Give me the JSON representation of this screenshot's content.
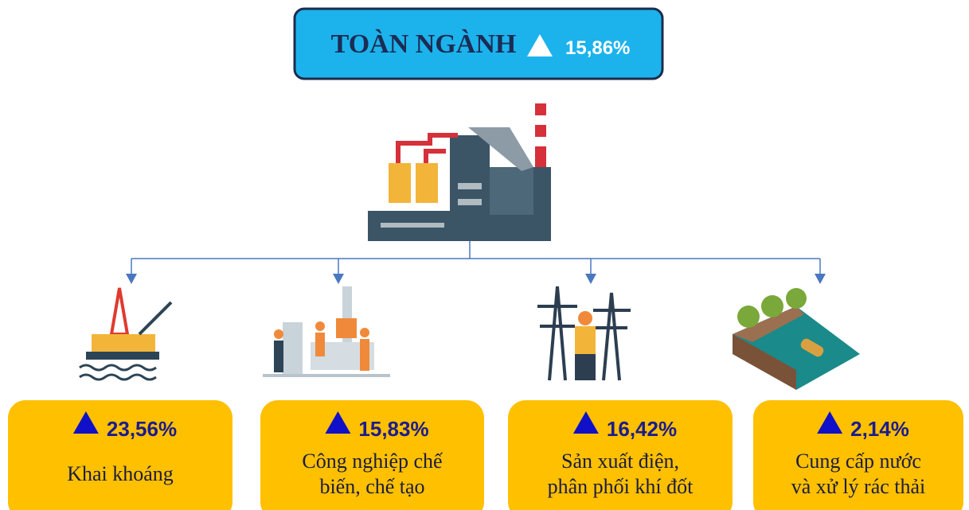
{
  "header": {
    "title": "TOÀN NGÀNH",
    "value": "15,86%"
  },
  "sectors": [
    {
      "value": "23,56%",
      "label_lines": [
        "Khai khoáng"
      ]
    },
    {
      "value": "15,83%",
      "label_lines": [
        "Công nghiệp chế",
        "biến, chế tạo"
      ]
    },
    {
      "value": "16,42%",
      "label_lines": [
        "Sản xuất điện,",
        "phân phối khí đốt"
      ]
    },
    {
      "value": "2,14%",
      "label_lines": [
        "Cung cấp nước",
        "và xử lý rác thải"
      ]
    }
  ]
}
